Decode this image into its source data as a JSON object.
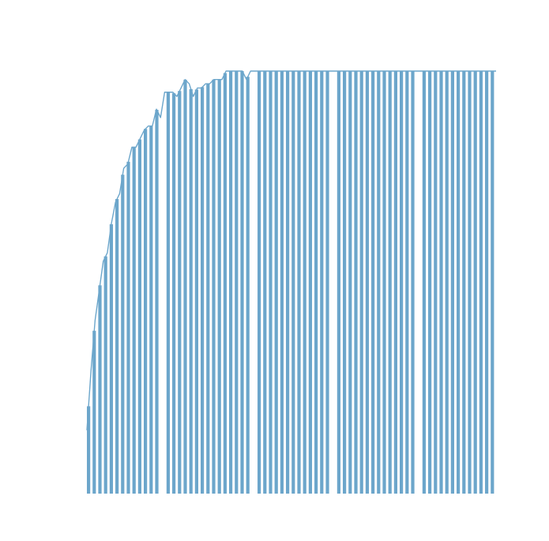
{
  "chart_data": {
    "type": "area",
    "title": "",
    "xlabel": "",
    "ylabel": "",
    "grid": false,
    "legend": "none",
    "fill_color": "#6CA6CB",
    "x": [
      0,
      1,
      2,
      3,
      4,
      5,
      6,
      7,
      8,
      9,
      10,
      11,
      12,
      13,
      14,
      15,
      16,
      17,
      18,
      19,
      20,
      21,
      22,
      23,
      24,
      25,
      26,
      27,
      28,
      29,
      30,
      31,
      32,
      33,
      34,
      35,
      36,
      37,
      38,
      39,
      40,
      41,
      42,
      43,
      44,
      45,
      46,
      47,
      48,
      49,
      50,
      51,
      52,
      53,
      54,
      55,
      56,
      57,
      58,
      59,
      60,
      61,
      62,
      63,
      64,
      65,
      66,
      67,
      68,
      69,
      70,
      71,
      72,
      73,
      74,
      75,
      76,
      77,
      78,
      79,
      80,
      81,
      82,
      83,
      84,
      85,
      86,
      87,
      88,
      89,
      90,
      91,
      92,
      93,
      94,
      95,
      96,
      97,
      98,
      99,
      100
    ],
    "values": [
      0.15,
      0.29,
      0.41,
      0.48,
      0.55,
      0.57,
      0.64,
      0.69,
      0.71,
      0.77,
      0.78,
      0.82,
      0.82,
      0.84,
      0.86,
      0.87,
      0.87,
      0.91,
      0.89,
      0.95,
      0.95,
      0.95,
      0.94,
      0.96,
      0.98,
      0.97,
      0.94,
      0.96,
      0.96,
      0.97,
      0.97,
      0.98,
      0.98,
      0.98,
      1.0,
      1.0,
      1.0,
      1.0,
      1.0,
      0.98,
      1.0,
      1.0,
      1.0,
      1.0,
      1.0,
      1.0,
      1.0,
      1.0,
      1.0,
      1.0,
      1.0,
      1.0,
      1.0,
      1.0,
      1.0,
      1.0,
      1.0,
      1.0,
      1.0,
      1.0,
      1.0,
      1.0,
      1.0,
      1.0,
      1.0,
      1.0,
      1.0,
      1.0,
      1.0,
      1.0,
      1.0,
      1.0,
      1.0,
      1.0,
      1.0,
      1.0,
      1.0,
      1.0,
      1.0,
      1.0,
      1.0,
      1.0,
      1.0,
      1.0,
      1.0,
      1.0,
      1.0,
      1.0,
      1.0,
      1.0,
      1.0,
      1.0,
      1.0,
      1.0,
      1.0,
      1.0,
      1.0,
      1.0,
      1.0,
      1.0,
      1.0
    ],
    "xlim": [
      0,
      100
    ],
    "ylim": [
      0,
      1
    ],
    "axes_visible": false
  }
}
